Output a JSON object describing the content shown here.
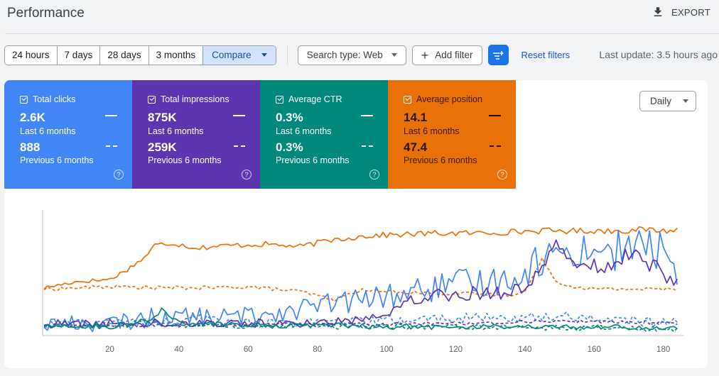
{
  "header": {
    "title": "Performance",
    "export_label": "EXPORT"
  },
  "toolbar": {
    "ranges": [
      "24 hours",
      "7 days",
      "28 days",
      "3 months"
    ],
    "compare_label": "Compare",
    "search_type": "Search type: Web",
    "add_filter": "Add filter",
    "reset_filters": "Reset filters",
    "last_update": "Last update: 3.5 hours ago"
  },
  "metrics": [
    {
      "label": "Total clicks",
      "value": "2.6K",
      "value_label": "Last 6 months",
      "prev_value": "888",
      "prev_label": "Previous 6 months",
      "color": "#4285f4"
    },
    {
      "label": "Total impressions",
      "value": "875K",
      "value_label": "Last 6 months",
      "prev_value": "259K",
      "prev_label": "Previous 6 months",
      "color": "#5e35b1"
    },
    {
      "label": "Average CTR",
      "value": "0.3%",
      "value_label": "Last 6 months",
      "prev_value": "0.3%",
      "prev_label": "Previous 6 months",
      "color": "#00897b"
    },
    {
      "label": "Average position",
      "value": "14.1",
      "value_label": "Last 6 months",
      "prev_value": "47.4",
      "prev_label": "Previous 6 months",
      "color": "#e8710a"
    }
  ],
  "help_glyph": "?",
  "granularity": "Daily",
  "chart_data": {
    "type": "line",
    "x_ticks": [
      20,
      40,
      60,
      80,
      100,
      120,
      140,
      160,
      180
    ],
    "x_range": [
      1,
      185
    ],
    "y_range": [
      0,
      100
    ],
    "series": [
      {
        "color": "#e8710a",
        "style": "solid",
        "keypoints": [
          [
            1,
            37
          ],
          [
            10,
            42
          ],
          [
            20,
            44
          ],
          [
            25,
            52
          ],
          [
            30,
            62
          ],
          [
            33,
            72
          ],
          [
            38,
            74
          ],
          [
            45,
            70
          ],
          [
            55,
            72
          ],
          [
            65,
            73
          ],
          [
            75,
            71
          ],
          [
            85,
            77
          ],
          [
            95,
            80
          ],
          [
            105,
            81
          ],
          [
            115,
            82
          ],
          [
            125,
            82
          ],
          [
            135,
            83
          ],
          [
            145,
            84
          ],
          [
            155,
            84
          ],
          [
            165,
            84
          ],
          [
            175,
            85
          ],
          [
            181,
            84
          ],
          [
            184,
            85
          ]
        ]
      },
      {
        "color": "#e8710a",
        "style": "dashed",
        "keypoints": [
          [
            1,
            36
          ],
          [
            20,
            38
          ],
          [
            35,
            37
          ],
          [
            50,
            37
          ],
          [
            60,
            38
          ],
          [
            75,
            34
          ],
          [
            85,
            27
          ],
          [
            92,
            35
          ],
          [
            100,
            34
          ],
          [
            110,
            33
          ],
          [
            125,
            32
          ],
          [
            135,
            31
          ],
          [
            140,
            34
          ],
          [
            145,
            60
          ],
          [
            150,
            40
          ],
          [
            160,
            36
          ],
          [
            170,
            36
          ],
          [
            180,
            36
          ]
        ]
      },
      {
        "color": "#4285f4",
        "style": "solid",
        "keypoints": [
          [
            1,
            7
          ],
          [
            10,
            8
          ],
          [
            20,
            7
          ],
          [
            30,
            12
          ],
          [
            40,
            14
          ],
          [
            50,
            12
          ],
          [
            60,
            14
          ],
          [
            70,
            18
          ],
          [
            80,
            22
          ],
          [
            90,
            26
          ],
          [
            100,
            30
          ],
          [
            110,
            35
          ],
          [
            120,
            40
          ],
          [
            130,
            42
          ],
          [
            140,
            50
          ],
          [
            145,
            62
          ],
          [
            150,
            65
          ],
          [
            155,
            68
          ],
          [
            160,
            70
          ],
          [
            165,
            66
          ],
          [
            170,
            72
          ],
          [
            175,
            70
          ],
          [
            180,
            68
          ],
          [
            184,
            45
          ]
        ],
        "noise": 15
      },
      {
        "color": "#4285f4",
        "style": "dashed",
        "keypoints": [
          [
            1,
            6
          ],
          [
            20,
            8
          ],
          [
            30,
            10
          ],
          [
            40,
            8
          ],
          [
            45,
            12
          ],
          [
            60,
            8
          ],
          [
            80,
            8
          ],
          [
            100,
            10
          ],
          [
            120,
            12
          ],
          [
            140,
            12
          ],
          [
            150,
            14
          ],
          [
            160,
            12
          ],
          [
            170,
            10
          ],
          [
            180,
            8
          ]
        ],
        "noise": 8
      },
      {
        "color": "#5e35b1",
        "style": "solid",
        "keypoints": [
          [
            1,
            7
          ],
          [
            30,
            8
          ],
          [
            60,
            8
          ],
          [
            70,
            7
          ],
          [
            90,
            10
          ],
          [
            100,
            18
          ],
          [
            110,
            30
          ],
          [
            120,
            32
          ],
          [
            130,
            33
          ],
          [
            140,
            35
          ],
          [
            145,
            60
          ],
          [
            150,
            70
          ],
          [
            155,
            60
          ],
          [
            160,
            55
          ],
          [
            165,
            58
          ],
          [
            170,
            62
          ],
          [
            175,
            60
          ],
          [
            180,
            50
          ],
          [
            184,
            40
          ]
        ],
        "noise": 8
      },
      {
        "color": "#5e35b1",
        "style": "dashed",
        "keypoints": [
          [
            1,
            6
          ],
          [
            40,
            6
          ],
          [
            80,
            7
          ],
          [
            110,
            7
          ],
          [
            130,
            8
          ],
          [
            140,
            9
          ],
          [
            150,
            10
          ],
          [
            160,
            9
          ],
          [
            170,
            9
          ],
          [
            180,
            8
          ]
        ],
        "noise": 3
      },
      {
        "color": "#00897b",
        "style": "solid",
        "keypoints": [
          [
            1,
            5
          ],
          [
            20,
            5
          ],
          [
            32,
            10
          ],
          [
            35,
            20
          ],
          [
            40,
            8
          ],
          [
            60,
            6
          ],
          [
            80,
            6
          ],
          [
            100,
            5
          ],
          [
            120,
            5
          ],
          [
            140,
            5
          ],
          [
            160,
            5
          ],
          [
            180,
            4
          ]
        ],
        "noise": 5
      },
      {
        "color": "#00897b",
        "style": "dashed",
        "keypoints": [
          [
            1,
            5
          ],
          [
            20,
            6
          ],
          [
            30,
            8
          ],
          [
            40,
            6
          ],
          [
            60,
            5
          ],
          [
            80,
            5
          ],
          [
            100,
            5
          ],
          [
            120,
            5
          ],
          [
            140,
            4
          ],
          [
            160,
            4
          ],
          [
            180,
            3
          ]
        ],
        "noise": 5
      }
    ]
  }
}
